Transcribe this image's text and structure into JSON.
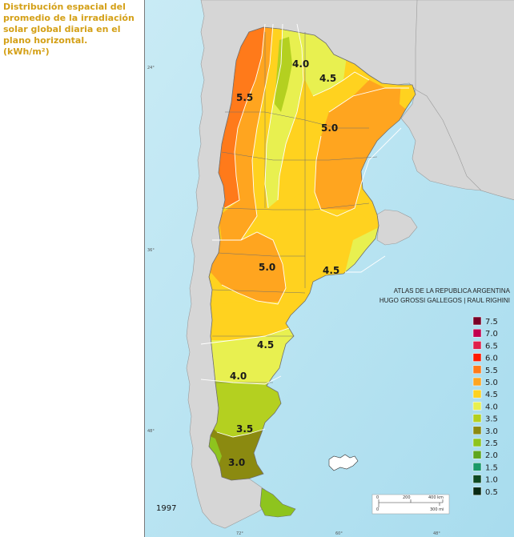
{
  "title_lines": [
    "Distribución espacial del",
    "promedio de la irradiación",
    "solar global diaria en el",
    "plano horizontal.",
    "(kWh/m²)"
  ],
  "atlas": {
    "line1": "ATLAS DE LA REPUBLICA ARGENTINA",
    "line2": "HUGO GROSSI GALLEGOS | RAUL RIGHINI"
  },
  "year": "1997",
  "legend": [
    {
      "label": "7.5",
      "color": "#7a0026"
    },
    {
      "label": "7.0",
      "color": "#c2004f"
    },
    {
      "label": "6.5",
      "color": "#e0204a"
    },
    {
      "label": "6.0",
      "color": "#ff1a00"
    },
    {
      "label": "5.5",
      "color": "#ff7a1a"
    },
    {
      "label": "5.0",
      "color": "#ffa51f"
    },
    {
      "label": "4.5",
      "color": "#ffd21f"
    },
    {
      "label": "4.0",
      "color": "#e8f050"
    },
    {
      "label": "3.5",
      "color": "#b4d020"
    },
    {
      "label": "3.0",
      "color": "#8b8a10"
    },
    {
      "label": "2.5",
      "color": "#8ec41e"
    },
    {
      "label": "2.0",
      "color": "#5fa61e"
    },
    {
      "label": "1.5",
      "color": "#1a9a6a"
    },
    {
      "label": "1.0",
      "color": "#0f4a22"
    },
    {
      "label": "0.5",
      "color": "#0a2a14"
    }
  ],
  "isoline_labels": [
    {
      "text": "4.0",
      "value": 4.0
    },
    {
      "text": "4.5",
      "value": 4.5
    },
    {
      "text": "5.5",
      "value": 5.5
    },
    {
      "text": "5.0",
      "value": 5.0
    },
    {
      "text": "5.0",
      "value": 5.0
    },
    {
      "text": "4.5",
      "value": 4.5
    },
    {
      "text": "4.5",
      "value": 4.5
    },
    {
      "text": "4.0",
      "value": 4.0
    },
    {
      "text": "3.5",
      "value": 3.5
    },
    {
      "text": "3.0",
      "value": 3.0
    }
  ],
  "coord_labels": {
    "lat_24": "24°",
    "lat_36": "36°",
    "lat_48": "48°",
    "lon_72": "72°",
    "lon_60": "60°",
    "lon_48": "48°"
  },
  "scale": {
    "km_0": "0",
    "km_200": "200",
    "km_400": "400 km",
    "mi_0": "0",
    "mi_300": "300 mi"
  },
  "colors": {
    "ocean": "#b8e2ef",
    "ocean_deep": "#9fd6ea",
    "land_neighbors": "#d6d6d6",
    "border": "#6e6e6e",
    "isoline": "#ffffff"
  }
}
